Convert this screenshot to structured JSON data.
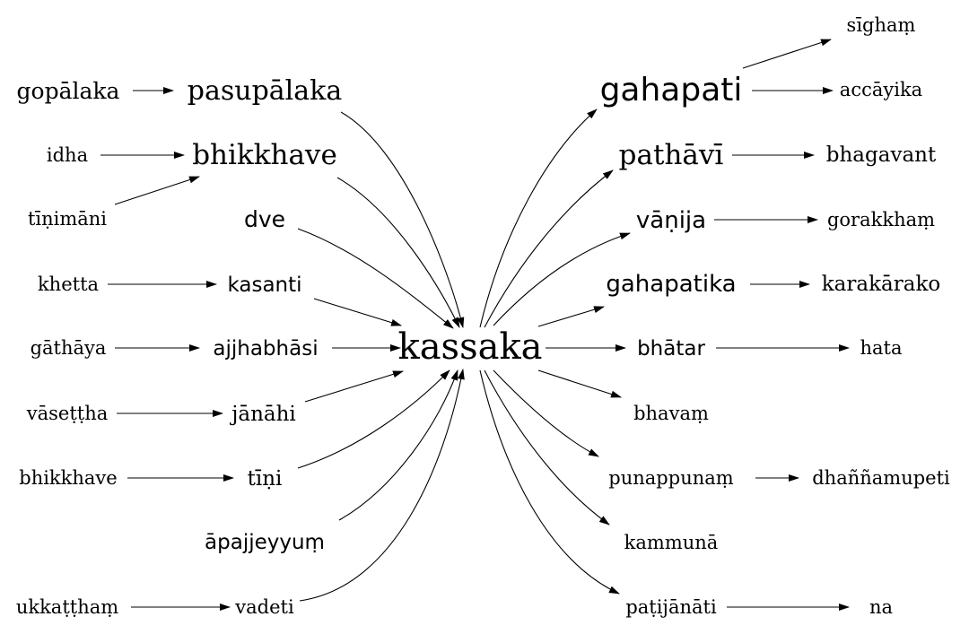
{
  "diagram": {
    "colors": {
      "line": "#000000",
      "text": "#000000",
      "background": "#ffffff"
    },
    "nodes": {
      "center": {
        "label": "kassaka"
      },
      "gopalaka": {
        "label": "gopālaka"
      },
      "pasupalaka": {
        "label": "pasupālaka"
      },
      "idha": {
        "label": "idha"
      },
      "bhikkhave_mid": {
        "label": "bhikkhave"
      },
      "tinimani": {
        "label": "tīṇimāni"
      },
      "dve": {
        "label": "dve"
      },
      "khetta": {
        "label": "khetta"
      },
      "kasanti": {
        "label": "kasanti"
      },
      "gathaya": {
        "label": "gāthāya"
      },
      "ajjhabhasi": {
        "label": "ajjhabhāsi"
      },
      "vasettha": {
        "label": "vāseṭṭha"
      },
      "janahi": {
        "label": "jānāhi"
      },
      "bhikkhave_left": {
        "label": "bhikkhave"
      },
      "tini": {
        "label": "tīṇi"
      },
      "apajjeyyum": {
        "label": "āpajjeyyuṃ"
      },
      "ukkatthham": {
        "label": "ukkaṭṭhaṃ"
      },
      "vadeti": {
        "label": "vadeti"
      },
      "sigham": {
        "label": "sīghaṃ"
      },
      "gahapati": {
        "label": "gahapati"
      },
      "accayika": {
        "label": "accāyika"
      },
      "pathavi": {
        "label": "pathāvī"
      },
      "bhagavant": {
        "label": "bhagavant"
      },
      "vanija": {
        "label": "vāṇija"
      },
      "gorakkham": {
        "label": "gorakkhaṃ"
      },
      "gahapatika": {
        "label": "gahapatika"
      },
      "karakarako": {
        "label": "karakārako"
      },
      "bhatar": {
        "label": "bhātar"
      },
      "hata": {
        "label": "hata"
      },
      "bhavam": {
        "label": "bhavaṃ"
      },
      "punappunam": {
        "label": "punappunaṃ"
      },
      "dhannamupeti": {
        "label": "dhaññamupeti"
      },
      "kammuna": {
        "label": "kammunā"
      },
      "patijanati": {
        "label": "paṭijānāti"
      },
      "na": {
        "label": "na"
      }
    }
  }
}
